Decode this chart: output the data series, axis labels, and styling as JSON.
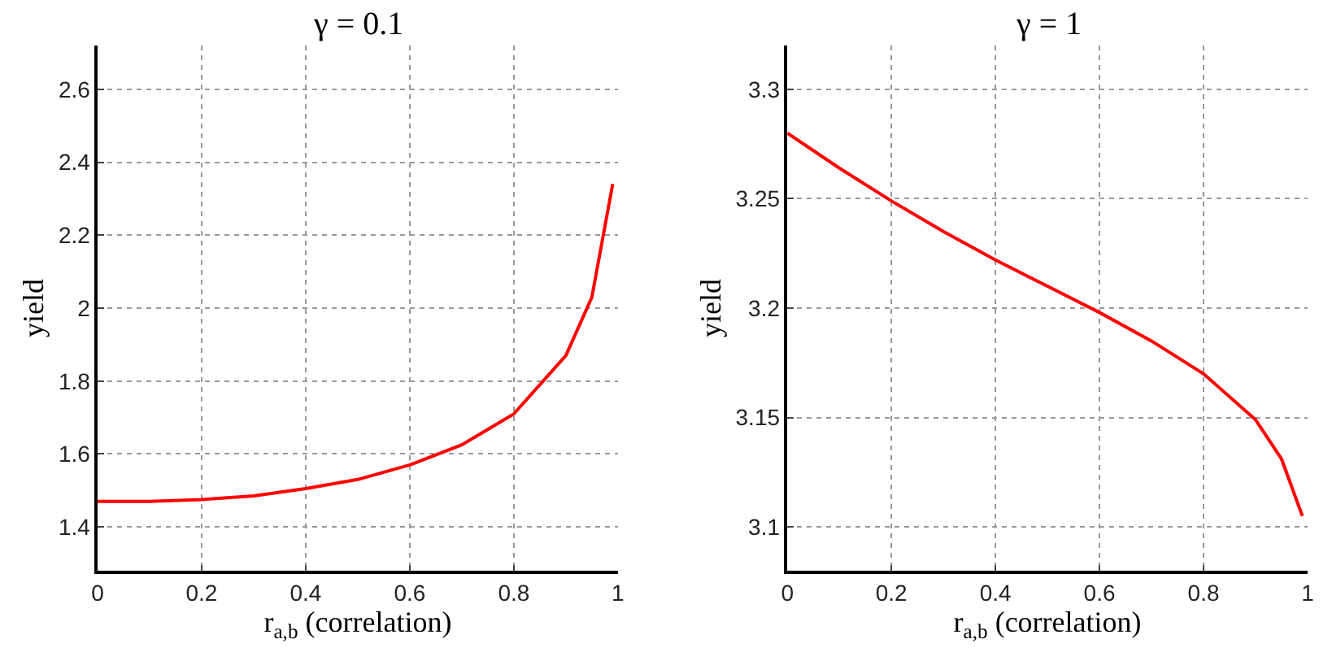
{
  "chart_data": [
    {
      "type": "line",
      "title": "γ = 0.1",
      "xlabel": "r$_{a,b}$ (correlation)",
      "ylabel": "yield",
      "x": [
        0,
        0.1,
        0.2,
        0.3,
        0.4,
        0.5,
        0.6,
        0.7,
        0.8,
        0.9,
        0.95,
        0.99
      ],
      "series": [
        {
          "color": "#ff0000",
          "values": [
            1.47,
            1.47,
            1.475,
            1.485,
            1.505,
            1.53,
            1.57,
            1.625,
            1.71,
            1.87,
            2.03,
            2.34
          ]
        }
      ],
      "xlim": [
        0,
        1
      ],
      "xticks": [
        0,
        0.2,
        0.4,
        0.6,
        0.8,
        1
      ],
      "ylim": [
        1.28,
        2.72
      ],
      "yticks": [
        1.4,
        1.6,
        1.8,
        2,
        2.2,
        2.4,
        2.6
      ],
      "grid": true,
      "line_style": "solid"
    },
    {
      "type": "line",
      "title": "γ = 1",
      "xlabel": "r$_{a,b}$ (correlation)",
      "ylabel": "yield",
      "x": [
        0,
        0.1,
        0.2,
        0.3,
        0.4,
        0.5,
        0.6,
        0.7,
        0.8,
        0.9,
        0.95,
        0.99
      ],
      "series": [
        {
          "color": "#ff0000",
          "values": [
            3.28,
            3.264,
            3.249,
            3.235,
            3.222,
            3.21,
            3.198,
            3.185,
            3.17,
            3.149,
            3.131,
            3.105
          ]
        }
      ],
      "xlim": [
        0,
        1
      ],
      "xticks": [
        0,
        0.2,
        0.4,
        0.6,
        0.8,
        1
      ],
      "ylim": [
        3.08,
        3.32
      ],
      "yticks": [
        3.1,
        3.15,
        3.2,
        3.25,
        3.3
      ],
      "grid": true,
      "line_style": "solid"
    }
  ]
}
